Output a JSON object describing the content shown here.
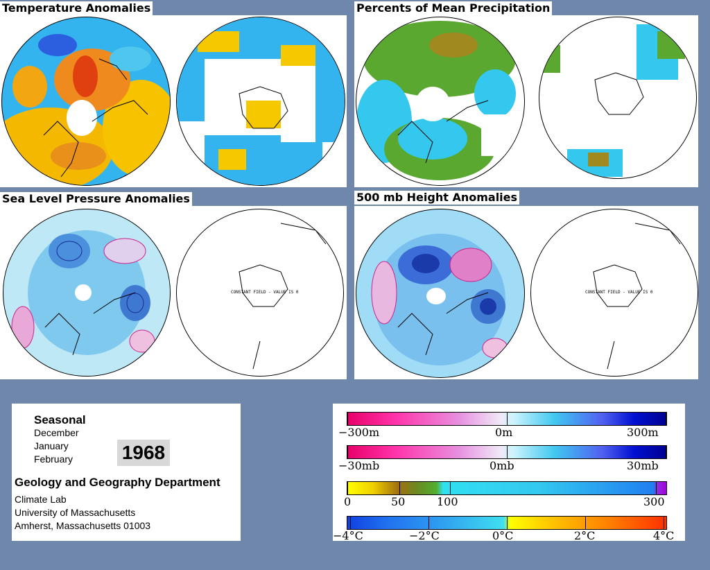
{
  "panels": {
    "temperature": {
      "title": "Temperature Anomalies"
    },
    "precipitation": {
      "title": "Percents of Mean Precipitation"
    },
    "slp": {
      "title": "Sea Level Pressure Anomalies",
      "south_note": "CONSTANT FIELD - VALUE IS 0"
    },
    "height500": {
      "title": "500 mb Height Anomalies",
      "south_note": "CONSTANT FIELD - VALUE IS 0"
    }
  },
  "info": {
    "period": "Seasonal",
    "months": [
      "December",
      "January",
      "February"
    ],
    "year": "1968",
    "department": "Geology and Geography Department",
    "address": [
      "Climate Lab",
      "University of Massachusetts",
      "Amherst, Massachusetts 01003"
    ]
  },
  "legends": {
    "height": {
      "labels": [
        "−300m",
        "0m",
        "300m"
      ]
    },
    "pressure": {
      "labels": [
        "−30mb",
        "0mb",
        "30mb"
      ]
    },
    "precip": {
      "labels": [
        "0",
        "50",
        "100",
        "300"
      ]
    },
    "temp": {
      "labels": [
        "−4°C",
        "−2°C",
        "0°C",
        "2°C",
        "4°C"
      ]
    }
  },
  "colors": {
    "background": "#6f87aa",
    "warm": "#f5b800",
    "cold": "#2aa0ee",
    "neutral": "#2fd8ee",
    "land_green": "#5aa830",
    "pos_contour": "#cc2288",
    "neg_contour": "#1a2a99"
  }
}
